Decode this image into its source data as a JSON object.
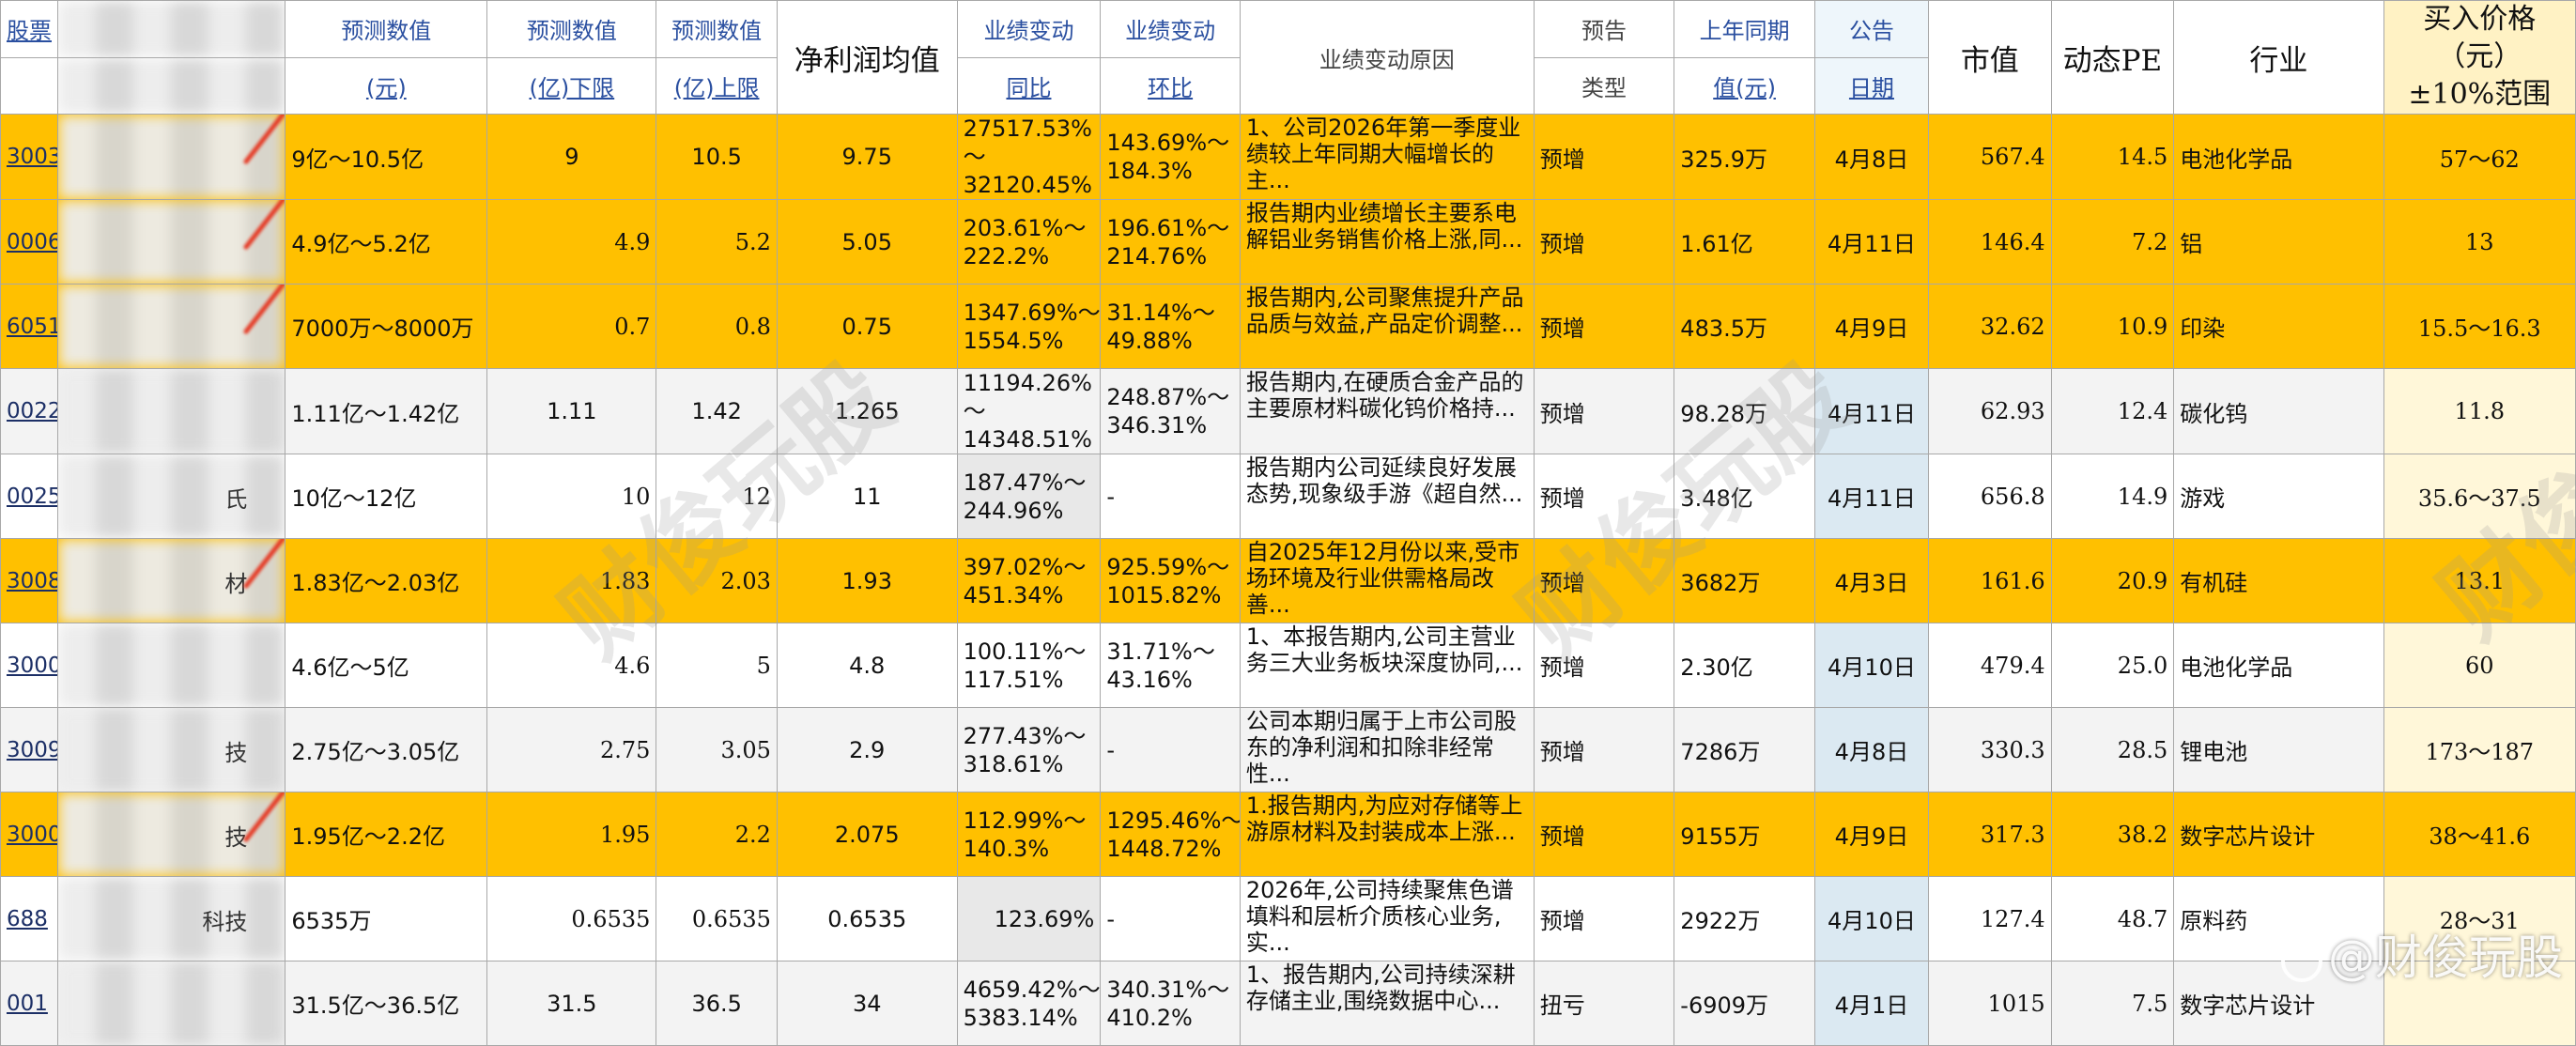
{
  "header": {
    "code": "股票",
    "forecast_a_top": "预测数值",
    "forecast_a_bottom": "(元)",
    "forecast_b_top": "预测数值",
    "forecast_b_bottom": "(亿)下限",
    "forecast_c_top": "预测数值",
    "forecast_c_bottom": "(亿)上限",
    "avg_profit": "净利润均值",
    "change_yoy_top": "业绩变动",
    "change_yoy_bottom": "同比",
    "change_qoq_top": "业绩变动",
    "change_qoq_bottom": "环比",
    "reason": "业绩变动原因",
    "type_top": "预告",
    "type_bottom": "类型",
    "prev_top": "上年同期",
    "prev_bottom": "值(元)",
    "date_top": "公告",
    "date_bottom": "日期",
    "mkt": "市值",
    "pe": "动态PE",
    "industry": "行业",
    "buy_line1": "买入价格（元）",
    "buy_line2": "±10%范围"
  },
  "rows": [
    {
      "code": "3003",
      "name": "",
      "hl": "hl",
      "range": "9亿～10.5亿",
      "low": "9",
      "high": "10.5",
      "low_big": false,
      "avg": "9.75",
      "yoy": [
        "27517.53%",
        "～",
        "32120.45%"
      ],
      "qoq": [
        "143.69%～",
        "184.3%"
      ],
      "reason": "1、公司2026年第一季度业绩较上年同期大幅增长的主...",
      "type": "预增",
      "prev": "325.9万",
      "date": "4月8日",
      "mkt": "567.4",
      "pe": "14.5",
      "industry": "电池化学品",
      "buy": "57～62",
      "tick": true
    },
    {
      "code": "0006",
      "name": "",
      "hl": "hl",
      "range": "4.9亿～5.2亿",
      "low": "4.9",
      "high": "5.2",
      "low_big": true,
      "avg": "5.05",
      "yoy": [
        "203.61%～",
        "222.2%"
      ],
      "qoq": [
        "196.61%～",
        "214.76%"
      ],
      "reason": "报告期内业绩增长主要系电解铝业务销售价格上涨,同...",
      "type": "预增",
      "prev": "1.61亿",
      "date": "4月11日",
      "mkt": "146.4",
      "pe": "7.2",
      "industry": "铝",
      "buy": "13",
      "tick": true
    },
    {
      "code": "6051",
      "name": "",
      "hl": "hl",
      "range": "7000万～8000万",
      "low": "0.7",
      "high": "0.8",
      "low_big": true,
      "avg": "0.75",
      "yoy": [
        "1347.69%～",
        "1554.5%"
      ],
      "qoq": [
        "31.14%～",
        "49.88%"
      ],
      "reason": "报告期内,公司聚焦提升产品品质与效益,产品定价调整...",
      "type": "预增",
      "prev": "483.5万",
      "date": "4月9日",
      "mkt": "32.62",
      "pe": "10.9",
      "industry": "印染",
      "buy": "15.5～16.3",
      "tick": true
    },
    {
      "code": "0022",
      "name": "",
      "hl": "gy",
      "range": "1.11亿～1.42亿",
      "low": "1.11",
      "high": "1.42",
      "low_big": false,
      "avg": "1.265",
      "yoy": [
        "11194.26%",
        "～",
        "14348.51%"
      ],
      "qoq": [
        "248.87%～",
        "346.31%"
      ],
      "reason": "报告期内,在硬质合金产品的主要原材料碳化钨价格持...",
      "type": "预增",
      "prev": "98.28万",
      "date": "4月11日",
      "mkt": "62.93",
      "pe": "12.4",
      "industry": "碳化钨",
      "buy": "11.8",
      "tick": false
    },
    {
      "code": "0025",
      "name": "氏",
      "hl": "wt",
      "range": "10亿～12亿",
      "low": "10",
      "high": "12",
      "low_big": true,
      "avg": "11",
      "yoy": [
        "187.47%～",
        "244.96%"
      ],
      "qoq": [
        "-"
      ],
      "reason": "报告期内公司延续良好发展态势,现象级手游《超自然...",
      "type": "预增",
      "prev": "3.48亿",
      "date": "4月11日",
      "mkt": "656.8",
      "pe": "14.9",
      "industry": "游戏",
      "buy": "35.6～37.5",
      "tick": false
    },
    {
      "code": "3008",
      "name": "材",
      "hl": "hl",
      "range": "1.83亿～2.03亿",
      "low": "1.83",
      "high": "2.03",
      "low_big": true,
      "avg": "1.93",
      "yoy": [
        "397.02%～",
        "451.34%"
      ],
      "qoq": [
        "925.59%～",
        "1015.82%"
      ],
      "reason": "自2025年12月份以来,受市场环境及行业供需格局改善...",
      "type": "预增",
      "prev": "3682万",
      "date": "4月3日",
      "mkt": "161.6",
      "pe": "20.9",
      "industry": "有机硅",
      "buy": "13.1",
      "tick": true
    },
    {
      "code": "3000",
      "name": "",
      "hl": "wt",
      "range": "4.6亿～5亿",
      "low": "4.6",
      "high": "5",
      "low_big": true,
      "avg": "4.8",
      "yoy": [
        "100.11%～",
        "117.51%"
      ],
      "qoq": [
        "31.71%～",
        "43.16%"
      ],
      "reason": "1、本报告期内,公司主营业务三大业务板块深度协同,...",
      "type": "预增",
      "prev": "2.30亿",
      "date": "4月10日",
      "mkt": "479.4",
      "pe": "25.0",
      "industry": "电池化学品",
      "buy": "60",
      "tick": false
    },
    {
      "code": "3009",
      "name": "技",
      "hl": "gy",
      "range": "2.75亿～3.05亿",
      "low": "2.75",
      "high": "3.05",
      "low_big": true,
      "avg": "2.9",
      "yoy": [
        "277.43%～",
        "318.61%"
      ],
      "qoq": [
        "-"
      ],
      "reason": "公司本期归属于上市公司股东的净利润和扣除非经常性...",
      "type": "预增",
      "prev": "7286万",
      "date": "4月8日",
      "mkt": "330.3",
      "pe": "28.5",
      "industry": "锂电池",
      "buy": "173～187",
      "tick": false
    },
    {
      "code": "3000",
      "name": "技",
      "hl": "hl",
      "range": "1.95亿～2.2亿",
      "low": "1.95",
      "high": "2.2",
      "low_big": true,
      "avg": "2.075",
      "yoy": [
        "112.99%～",
        "140.3%"
      ],
      "qoq": [
        "1295.46%～",
        "1448.72%"
      ],
      "reason": "1.报告期内,为应对存储等上游原材料及封装成本上涨...",
      "type": "预增",
      "prev": "9155万",
      "date": "4月9日",
      "mkt": "317.3",
      "pe": "38.2",
      "industry": "数字芯片设计",
      "buy": "38～41.6",
      "tick": true
    },
    {
      "code": "688",
      "name": "科技",
      "hl": "wt",
      "range": "6535万",
      "low": "0.6535",
      "high": "0.6535",
      "low_big": true,
      "avg": "0.6535",
      "yoy": [
        "123.69%"
      ],
      "qoq": [
        "-"
      ],
      "reason": "2026年,公司持续聚焦色谱填料和层析介质核心业务,实...",
      "type": "预增",
      "prev": "2922万",
      "date": "4月10日",
      "mkt": "127.4",
      "pe": "48.7",
      "industry": "原料药",
      "buy": "28～31",
      "tick": false
    },
    {
      "code": "001",
      "name": "",
      "hl": "gy",
      "range": "31.5亿～36.5亿",
      "low": "31.5",
      "high": "36.5",
      "low_big": false,
      "avg": "34",
      "yoy": [
        "4659.42%～",
        "5383.14%"
      ],
      "qoq": [
        "340.31%～",
        "410.2%"
      ],
      "reason": "1、报告期内,公司持续深耕存储主业,围绕数据中心...",
      "type": "扭亏",
      "prev": "-6909万",
      "date": "4月1日",
      "mkt": "1015",
      "pe": "7.5",
      "industry": "数字芯片设计",
      "buy": "",
      "tick": false
    }
  ],
  "watermark_text": "财俊玩股",
  "watermark_handle": "@财俊玩股"
}
